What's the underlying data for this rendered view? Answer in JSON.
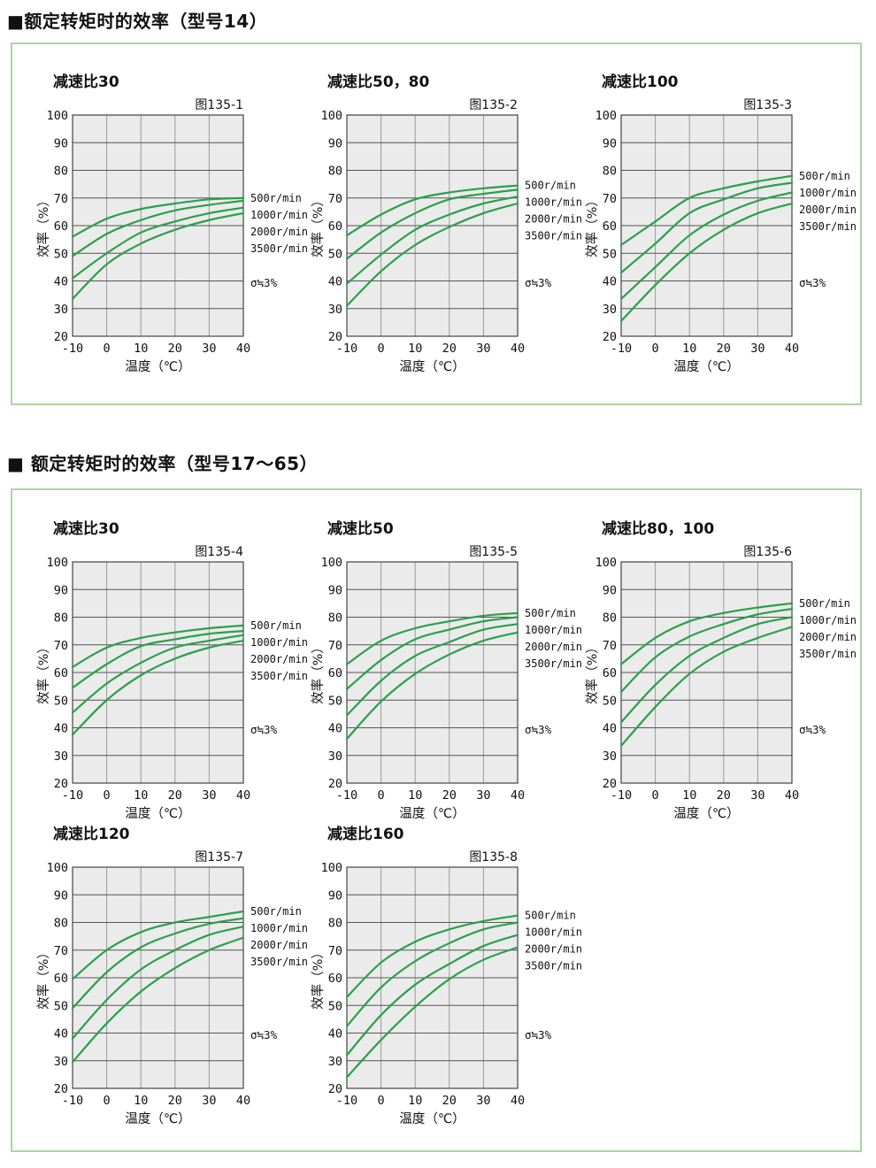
{
  "sections": [
    {
      "title": "■额定转矩时的效率（型号14）"
    },
    {
      "title": "■ 额定转矩时的效率（型号17～65）"
    }
  ],
  "colors": {
    "curve_green": "#2aa04a",
    "box_border_green": "#a8d7a0",
    "plot_background": "#ebebeb",
    "grid_horizontal": "#555555",
    "grid_vertical": "#999999",
    "plot_border": "#444444"
  },
  "chart_data": [
    {
      "type": "line",
      "section": 0,
      "title": "减速比30",
      "fig_label": "图135-1",
      "xlabel": "温度（℃）",
      "ylabel": "效率（%）",
      "sigma_note": "σ≒3%",
      "xlim": [
        -10,
        40
      ],
      "ylim": [
        20,
        100
      ],
      "xticks": [
        -10,
        0,
        10,
        20,
        30,
        40
      ],
      "yticks": [
        100,
        90,
        80,
        70,
        60,
        50,
        40,
        30,
        20
      ],
      "x": [
        -10,
        0,
        10,
        20,
        30,
        40
      ],
      "series": [
        {
          "name": "500r/min",
          "values": [
            56,
            62.5,
            66,
            68,
            69.5,
            70
          ]
        },
        {
          "name": "1000r/min",
          "values": [
            49,
            57,
            62,
            65.5,
            67.5,
            69
          ]
        },
        {
          "name": "2000r/min",
          "values": [
            41,
            50,
            57.5,
            61.5,
            64.5,
            66.5
          ]
        },
        {
          "name": "3500r/min",
          "values": [
            33.5,
            46,
            53.5,
            58.5,
            62,
            64.5
          ]
        }
      ]
    },
    {
      "type": "line",
      "section": 0,
      "title": "减速比50，80",
      "fig_label": "图135-2",
      "xlabel": "温度（℃）",
      "ylabel": "效率（%）",
      "sigma_note": "σ≒3%",
      "xlim": [
        -10,
        40
      ],
      "ylim": [
        20,
        100
      ],
      "xticks": [
        -10,
        0,
        10,
        20,
        30,
        40
      ],
      "yticks": [
        100,
        90,
        80,
        70,
        60,
        50,
        40,
        30,
        20
      ],
      "x": [
        -10,
        0,
        10,
        20,
        30,
        40
      ],
      "series": [
        {
          "name": "500r/min",
          "values": [
            56.5,
            64,
            69.5,
            72,
            73.5,
            74.5
          ]
        },
        {
          "name": "1000r/min",
          "values": [
            48,
            57.5,
            64.5,
            69.5,
            71.5,
            73
          ]
        },
        {
          "name": "2000r/min",
          "values": [
            39,
            49.5,
            58.5,
            64,
            68,
            70.5
          ]
        },
        {
          "name": "3500r/min",
          "values": [
            31,
            43.5,
            53,
            59.5,
            64.5,
            68
          ]
        }
      ]
    },
    {
      "type": "line",
      "section": 0,
      "title": "减速比100",
      "fig_label": "图135-3",
      "xlabel": "温度（℃）",
      "ylabel": "效率（%）",
      "sigma_note": "σ≒3%",
      "xlim": [
        -10,
        40
      ],
      "ylim": [
        20,
        100
      ],
      "xticks": [
        -10,
        0,
        10,
        20,
        30,
        40
      ],
      "yticks": [
        100,
        90,
        80,
        70,
        60,
        50,
        40,
        30,
        20
      ],
      "x": [
        -10,
        0,
        10,
        20,
        30,
        40
      ],
      "series": [
        {
          "name": "500r/min",
          "values": [
            53,
            61.5,
            70,
            73.5,
            76,
            78
          ]
        },
        {
          "name": "1000r/min",
          "values": [
            43,
            53.5,
            64.5,
            69.5,
            73.5,
            75.5
          ]
        },
        {
          "name": "2000r/min",
          "values": [
            33.5,
            45,
            56.5,
            64,
            69,
            72
          ]
        },
        {
          "name": "3500r/min",
          "values": [
            25.5,
            38.5,
            50,
            58.5,
            64.5,
            68
          ]
        }
      ]
    },
    {
      "type": "line",
      "section": 1,
      "title": "减速比30",
      "fig_label": "图135-4",
      "xlabel": "温度（℃）",
      "ylabel": "效率（%）",
      "sigma_note": "σ≒3%",
      "xlim": [
        -10,
        40
      ],
      "ylim": [
        20,
        100
      ],
      "xticks": [
        -10,
        0,
        10,
        20,
        30,
        40
      ],
      "yticks": [
        100,
        90,
        80,
        70,
        60,
        50,
        40,
        30,
        20
      ],
      "x": [
        -10,
        0,
        10,
        20,
        30,
        40
      ],
      "series": [
        {
          "name": "500r/min",
          "values": [
            62,
            69,
            72.5,
            74.5,
            76,
            77
          ]
        },
        {
          "name": "1000r/min",
          "values": [
            54.5,
            63,
            69.5,
            72,
            74,
            75
          ]
        },
        {
          "name": "2000r/min",
          "values": [
            45.5,
            56,
            63.5,
            69,
            71.5,
            73.5
          ]
        },
        {
          "name": "3500r/min",
          "values": [
            37.5,
            50,
            59,
            65,
            69,
            71.5
          ]
        }
      ]
    },
    {
      "type": "line",
      "section": 1,
      "title": "减速比50",
      "fig_label": "图135-5",
      "xlabel": "温度（℃）",
      "ylabel": "效率（%）",
      "sigma_note": "σ≒3%",
      "xlim": [
        -10,
        40
      ],
      "ylim": [
        20,
        100
      ],
      "xticks": [
        -10,
        0,
        10,
        20,
        30,
        40
      ],
      "yticks": [
        100,
        90,
        80,
        70,
        60,
        50,
        40,
        30,
        20
      ],
      "x": [
        -10,
        0,
        10,
        20,
        30,
        40
      ],
      "series": [
        {
          "name": "500r/min",
          "values": [
            63,
            71.5,
            76,
            78.5,
            80.5,
            81.5
          ]
        },
        {
          "name": "1000r/min",
          "values": [
            54,
            64.5,
            72,
            75.5,
            78.5,
            80
          ]
        },
        {
          "name": "2000r/min",
          "values": [
            44.5,
            57,
            66,
            71,
            75.5,
            77.5
          ]
        },
        {
          "name": "3500r/min",
          "values": [
            36,
            49.5,
            59.5,
            66.5,
            71.5,
            74.5
          ]
        }
      ]
    },
    {
      "type": "line",
      "section": 1,
      "title": "减速比80，100",
      "fig_label": "图135-6",
      "xlabel": "温度（℃）",
      "ylabel": "效率（%）",
      "sigma_note": "σ≒3%",
      "xlim": [
        -10,
        40
      ],
      "ylim": [
        20,
        100
      ],
      "xticks": [
        -10,
        0,
        10,
        20,
        30,
        40
      ],
      "yticks": [
        100,
        90,
        80,
        70,
        60,
        50,
        40,
        30,
        20
      ],
      "x": [
        -10,
        0,
        10,
        20,
        30,
        40
      ],
      "series": [
        {
          "name": "500r/min",
          "values": [
            63,
            72.5,
            78.5,
            81.5,
            83.5,
            85
          ]
        },
        {
          "name": "1000r/min",
          "values": [
            53,
            65.5,
            73,
            77.5,
            81,
            83
          ]
        },
        {
          "name": "2000r/min",
          "values": [
            42,
            55.5,
            66,
            72.5,
            77.5,
            80
          ]
        },
        {
          "name": "3500r/min",
          "values": [
            33.5,
            47.5,
            59.5,
            67.5,
            72.5,
            76.5
          ]
        }
      ]
    },
    {
      "type": "line",
      "section": 1,
      "title": "减速比120",
      "fig_label": "图135-7",
      "xlabel": "温度（℃）",
      "ylabel": "效率（%）",
      "sigma_note": "σ≒3%",
      "xlim": [
        -10,
        40
      ],
      "ylim": [
        20,
        100
      ],
      "xticks": [
        -10,
        0,
        10,
        20,
        30,
        40
      ],
      "yticks": [
        100,
        90,
        80,
        70,
        60,
        50,
        40,
        30,
        20
      ],
      "x": [
        -10,
        0,
        10,
        20,
        30,
        40
      ],
      "series": [
        {
          "name": "500r/min",
          "values": [
            59.5,
            70,
            76.5,
            80,
            82,
            84
          ]
        },
        {
          "name": "1000r/min",
          "values": [
            49,
            62,
            71,
            76,
            79.5,
            81.5
          ]
        },
        {
          "name": "2000r/min",
          "values": [
            38,
            52,
            63,
            70,
            75.5,
            78.5
          ]
        },
        {
          "name": "3500r/min",
          "values": [
            29.5,
            43.5,
            55,
            63.5,
            70,
            74.5
          ]
        }
      ]
    },
    {
      "type": "line",
      "section": 1,
      "title": "减速比160",
      "fig_label": "图135-8",
      "xlabel": "温度（℃）",
      "ylabel": "效率（%）",
      "sigma_note": "σ≒3%",
      "xlim": [
        -10,
        40
      ],
      "ylim": [
        20,
        100
      ],
      "xticks": [
        -10,
        0,
        10,
        20,
        30,
        40
      ],
      "yticks": [
        100,
        90,
        80,
        70,
        60,
        50,
        40,
        30,
        20
      ],
      "x": [
        -10,
        0,
        10,
        20,
        30,
        40
      ],
      "series": [
        {
          "name": "500r/min",
          "values": [
            53,
            65.5,
            73,
            77.5,
            80.5,
            82.5
          ]
        },
        {
          "name": "1000r/min",
          "values": [
            42.5,
            56.5,
            66,
            72.5,
            77.5,
            80
          ]
        },
        {
          "name": "2000r/min",
          "values": [
            32,
            46.5,
            57.5,
            65,
            71.5,
            75.5
          ]
        },
        {
          "name": "3500r/min",
          "values": [
            24,
            37.5,
            49.5,
            59.5,
            66.5,
            71
          ]
        }
      ]
    }
  ]
}
